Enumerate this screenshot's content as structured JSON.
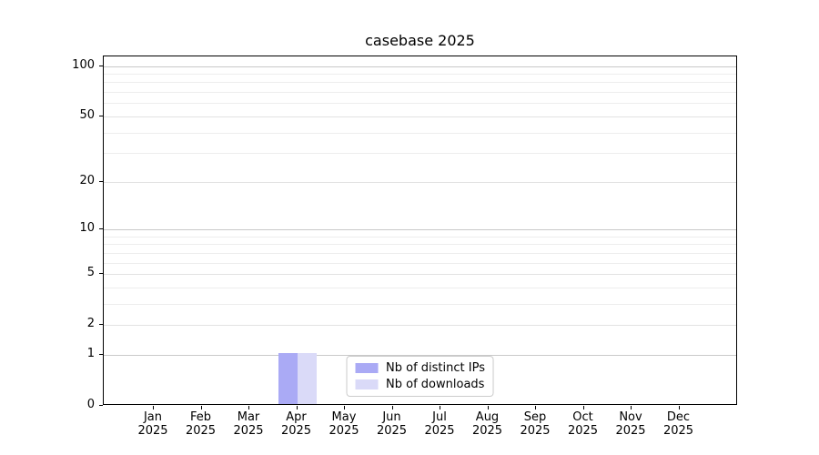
{
  "figure": {
    "background": "#ffffff"
  },
  "chart_data": {
    "type": "bar",
    "title": "casebase 2025",
    "categories": [
      "Jan",
      "Feb",
      "Mar",
      "Apr",
      "May",
      "Jun",
      "Jul",
      "Aug",
      "Sep",
      "Oct",
      "Nov",
      "Dec"
    ],
    "category_year": "2025",
    "series": [
      {
        "name": "Nb of distinct IPs",
        "color": "#aaaaf5",
        "values": [
          0,
          0,
          0,
          1,
          0,
          0,
          0,
          0,
          0,
          0,
          0,
          0
        ]
      },
      {
        "name": "Nb of downloads",
        "color": "#dadaf8",
        "values": [
          0,
          0,
          0,
          1,
          0,
          0,
          0,
          0,
          0,
          0,
          0,
          0
        ]
      }
    ],
    "xlabel": "",
    "ylabel": "",
    "yscale": "log1p",
    "ylim": [
      0,
      114
    ],
    "yticks": [
      0,
      1,
      2,
      5,
      10,
      20,
      50,
      100
    ],
    "grid": {
      "strong_lines": [
        1,
        10,
        100
      ],
      "strong_color": "#c9c9c9",
      "medium_lines": [
        2,
        5,
        20,
        50
      ],
      "medium_color": "#e2e2e2",
      "minor_lines": [
        3,
        4,
        6,
        7,
        8,
        9,
        30,
        40,
        60,
        70,
        80,
        90
      ],
      "minor_color": "#ededed"
    },
    "legend_position": "lower center",
    "axes_color": "#000000",
    "text_color": "#000000"
  }
}
